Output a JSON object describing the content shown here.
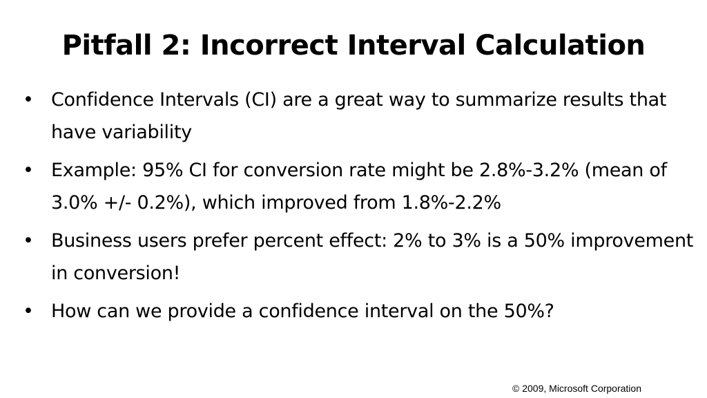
{
  "title": "Pitfall 2: Incorrect Interval Calculation",
  "bullets": [
    "Confidence Intervals (CI) are a great way to summarize results that have variability",
    "Example: 95% CI for conversion rate might be 2.8%-3.2% (mean of 3.0% +/- 0.2%), which improved from 1.8%-2.2%",
    "Business users prefer percent effect: 2% to 3% is a 50% improvement in conversion!",
    "How can we provide a confidence interval on the 50%?"
  ],
  "bullet_glyph": "•",
  "footer": "© 2009, Microsoft Corporation"
}
